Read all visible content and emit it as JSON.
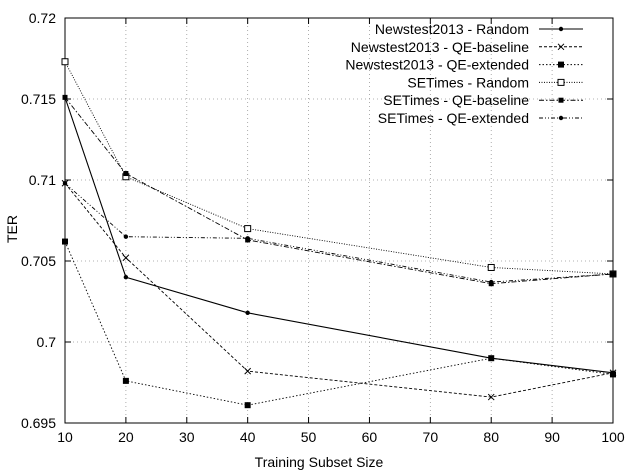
{
  "chart_data": {
    "type": "line",
    "xlabel": "Training Subset Size",
    "ylabel": "TER",
    "x": [
      10,
      20,
      40,
      80,
      100
    ],
    "xlim": [
      10,
      100
    ],
    "ylim": [
      0.695,
      0.72
    ],
    "xticks": [
      10,
      20,
      30,
      40,
      50,
      60,
      70,
      80,
      90,
      100
    ],
    "yticks": [
      "0.695",
      "0.7",
      "0.705",
      "0.71",
      "0.715",
      "0.72"
    ],
    "yticks_values": [
      0.695,
      0.7,
      0.705,
      0.71,
      0.715,
      0.72
    ],
    "grid": true,
    "legend_position": "top-right",
    "series": [
      {
        "name": "Newstest2013 - Random",
        "values": [
          0.7151,
          0.704,
          0.7018,
          0.699,
          0.6981
        ],
        "marker": "dot",
        "dash": ""
      },
      {
        "name": "Newstest2013 - QE-baseline",
        "values": [
          0.7098,
          0.7052,
          0.6982,
          0.6966,
          0.6981
        ],
        "marker": "x",
        "dash": "3,2"
      },
      {
        "name": "Newstest2013 - QE-extended",
        "values": [
          0.7062,
          0.6976,
          0.6961,
          0.699,
          0.698
        ],
        "marker": "square",
        "dash": "1.5,2"
      },
      {
        "name": "SETimes - Random",
        "values": [
          0.7173,
          0.7102,
          0.707,
          0.7046,
          0.7042
        ],
        "marker": "open-square",
        "dash": "1,1.5"
      },
      {
        "name": "SETimes - QE-baseline",
        "values": [
          0.7151,
          0.7104,
          0.7063,
          0.7036,
          0.7042
        ],
        "marker": "small-square",
        "dash": "5,2,1.5,2"
      },
      {
        "name": "SETimes - QE-extended",
        "values": [
          0.7098,
          0.7065,
          0.7064,
          0.7037,
          0.7042
        ],
        "marker": "dot",
        "dash": "4,2,1,2,1,2"
      }
    ]
  }
}
